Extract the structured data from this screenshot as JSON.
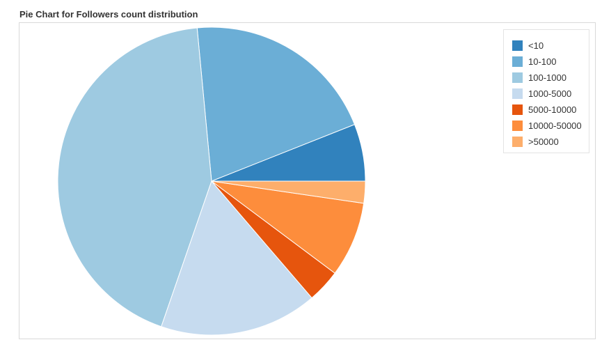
{
  "chart_data": {
    "type": "pie",
    "title": "Pie Chart for Followers count distribution",
    "legend_position": "top-right",
    "slices": [
      {
        "label": "<10",
        "value": 6.0,
        "color": "#3182bd"
      },
      {
        "label": "10-100",
        "value": 20.5,
        "color": "#6baed6"
      },
      {
        "label": "100-1000",
        "value": 43.2,
        "color": "#9ecae1"
      },
      {
        "label": "1000-5000",
        "value": 16.6,
        "color": "#c6dbef"
      },
      {
        "label": "5000-10000",
        "value": 3.5,
        "color": "#e6550d"
      },
      {
        "label": "10000-50000",
        "value": 7.9,
        "color": "#fd8d3c"
      },
      {
        "label": ">50000",
        "value": 2.3,
        "color": "#fdae6b"
      }
    ]
  }
}
